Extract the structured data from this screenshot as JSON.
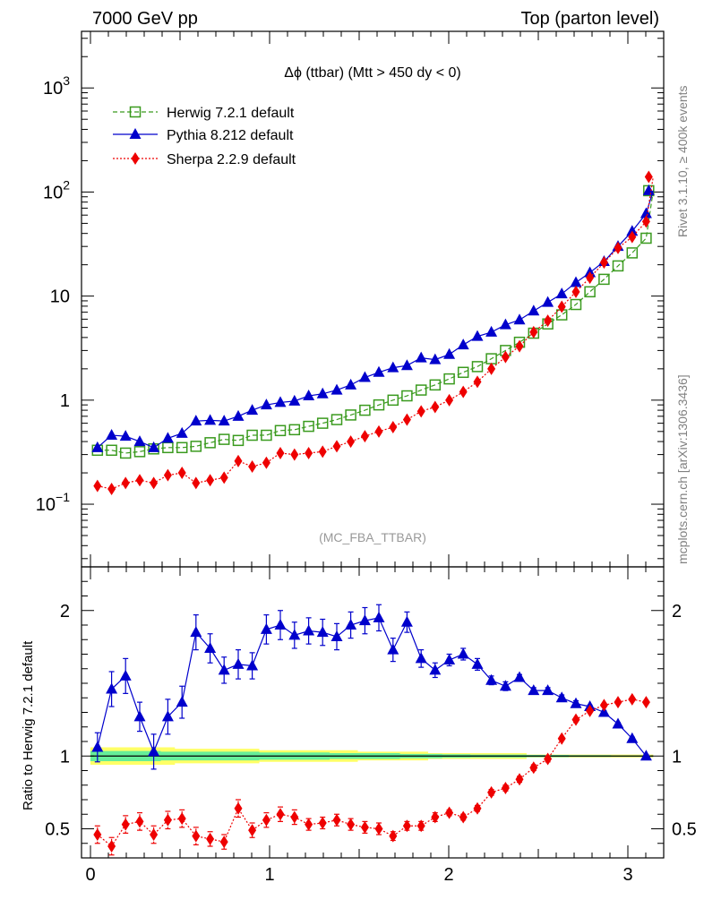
{
  "header": {
    "left": "7000 GeV pp",
    "right": "Top (parton level)"
  },
  "side_labels": {
    "rivet": "Rivet 3.1.10, ≥ 400k events",
    "mcplots": "mcplots.cern.ch [arXiv:1306.3436]"
  },
  "colors": {
    "herwig": "#3a9a1e",
    "pythia": "#0000cc",
    "sherpa": "#ee0000",
    "band_outer": "#ffff66",
    "band_inner": "#66ee99"
  },
  "chart_data": [
    {
      "type": "line",
      "title": "Δϕ (ttbar) (Mtt > 450 dy < 0)",
      "analysis_tag": "(MC_FBA_TTBAR)",
      "xlabel": "",
      "ylabel": "",
      "yscale": "log",
      "xlim": [
        -0.05,
        3.2
      ],
      "ylim": [
        0.025,
        3500
      ],
      "y_ticks": [
        {
          "value": 0.1,
          "base": "10",
          "exp": "−1"
        },
        {
          "value": 1,
          "base": "1",
          "exp": ""
        },
        {
          "value": 10,
          "base": "10",
          "exp": ""
        },
        {
          "value": 100,
          "base": "10",
          "exp": "2"
        },
        {
          "value": 1000,
          "base": "10",
          "exp": "3"
        }
      ],
      "legend_position": "top-left",
      "x": [
        0.039,
        0.118,
        0.196,
        0.275,
        0.353,
        0.432,
        0.511,
        0.589,
        0.668,
        0.746,
        0.825,
        0.903,
        0.982,
        1.06,
        1.139,
        1.218,
        1.296,
        1.375,
        1.453,
        1.532,
        1.61,
        1.689,
        1.767,
        1.846,
        1.924,
        2.003,
        2.081,
        2.16,
        2.238,
        2.317,
        2.395,
        2.474,
        2.553,
        2.631,
        2.71,
        2.788,
        2.867,
        2.945,
        3.024,
        3.102
      ],
      "series": [
        {
          "name": "Herwig 7.2.1 default",
          "key": "herwig",
          "marker": "open-square",
          "line": "dashed",
          "values": [
            0.33,
            0.33,
            0.31,
            0.32,
            0.34,
            0.35,
            0.35,
            0.36,
            0.39,
            0.42,
            0.41,
            0.46,
            0.46,
            0.51,
            0.52,
            0.56,
            0.6,
            0.65,
            0.72,
            0.8,
            0.9,
            1.0,
            1.1,
            1.25,
            1.4,
            1.6,
            1.85,
            2.1,
            2.5,
            3.0,
            3.6,
            4.4,
            5.4,
            6.6,
            8.3,
            11.0,
            14.5,
            19.5,
            26.0,
            36.0
          ]
        },
        {
          "name": "Pythia 8.212 default",
          "key": "pythia",
          "marker": "filled-triangle",
          "line": "solid",
          "values": [
            0.35,
            0.46,
            0.45,
            0.4,
            0.35,
            0.43,
            0.48,
            0.63,
            0.64,
            0.63,
            0.7,
            0.8,
            0.9,
            0.95,
            0.98,
            1.1,
            1.15,
            1.25,
            1.4,
            1.65,
            1.85,
            2.05,
            2.15,
            2.55,
            2.45,
            2.75,
            3.4,
            4.1,
            4.5,
            5.3,
            5.9,
            7.2,
            8.7,
            10.5,
            13.5,
            16.8,
            21.5,
            30.0,
            42.0,
            62.0
          ]
        },
        {
          "name": "Sherpa 2.2.9 default",
          "key": "sherpa",
          "marker": "filled-diamond",
          "line": "dotted",
          "values": [
            0.15,
            0.14,
            0.16,
            0.17,
            0.16,
            0.19,
            0.2,
            0.16,
            0.17,
            0.18,
            0.26,
            0.23,
            0.25,
            0.31,
            0.3,
            0.31,
            0.32,
            0.36,
            0.4,
            0.45,
            0.5,
            0.55,
            0.65,
            0.78,
            0.86,
            1.0,
            1.2,
            1.5,
            2.0,
            2.6,
            3.3,
            4.5,
            5.8,
            7.9,
            11.0,
            15.0,
            21.0,
            29.0,
            37.0,
            52.0
          ]
        }
      ],
      "last_bin_value": {
        "herwig": 103,
        "pythia": 103,
        "sherpa": 140
      }
    },
    {
      "type": "line",
      "title": "",
      "xlabel": "",
      "ylabel": "Ratio to Herwig 7.2.1 default",
      "xlim": [
        -0.05,
        3.2
      ],
      "ylim": [
        0.3,
        2.3
      ],
      "x_ticks": [
        "0",
        "1",
        "2",
        "3"
      ],
      "y_ticks": [
        "0.5",
        "1",
        "2"
      ],
      "x": [
        0.039,
        0.118,
        0.196,
        0.275,
        0.353,
        0.432,
        0.511,
        0.589,
        0.668,
        0.746,
        0.825,
        0.903,
        0.982,
        1.06,
        1.139,
        1.218,
        1.296,
        1.375,
        1.453,
        1.532,
        1.61,
        1.689,
        1.767,
        1.846,
        1.924,
        2.003,
        2.081,
        2.16,
        2.238,
        2.317,
        2.395,
        2.474,
        2.553,
        2.631,
        2.71,
        2.788,
        2.867,
        2.945,
        3.024,
        3.102
      ],
      "series": [
        {
          "name": "Pythia 8.212 default",
          "key": "pythia",
          "values": [
            1.06,
            1.46,
            1.55,
            1.27,
            1.03,
            1.27,
            1.37,
            1.85,
            1.74,
            1.59,
            1.63,
            1.62,
            1.87,
            1.9,
            1.83,
            1.86,
            1.85,
            1.82,
            1.9,
            1.93,
            1.95,
            1.73,
            1.92,
            1.67,
            1.59,
            1.66,
            1.7,
            1.63,
            1.52,
            1.48,
            1.54,
            1.45,
            1.45,
            1.4,
            1.36,
            1.34,
            1.3,
            1.22,
            1.12,
            1.0
          ],
          "errors": [
            0.1,
            0.12,
            0.12,
            0.1,
            0.12,
            0.12,
            0.11,
            0.12,
            0.1,
            0.09,
            0.1,
            0.09,
            0.1,
            0.1,
            0.09,
            0.09,
            0.09,
            0.09,
            0.09,
            0.09,
            0.09,
            0.08,
            0.07,
            0.06,
            0.05,
            0.04,
            0.04,
            0.04,
            0.03,
            0.03,
            0.02,
            0.02,
            0.02,
            0.02,
            0.02,
            0.01,
            0.01,
            0.01,
            0.01,
            0.01
          ]
        },
        {
          "name": "Sherpa 2.2.9 default",
          "key": "sherpa",
          "values": [
            0.46,
            0.38,
            0.53,
            0.55,
            0.46,
            0.56,
            0.57,
            0.45,
            0.43,
            0.41,
            0.64,
            0.49,
            0.56,
            0.6,
            0.58,
            0.53,
            0.54,
            0.56,
            0.53,
            0.51,
            0.5,
            0.45,
            0.52,
            0.52,
            0.58,
            0.61,
            0.58,
            0.64,
            0.75,
            0.78,
            0.84,
            0.92,
            0.98,
            1.12,
            1.25,
            1.31,
            1.35,
            1.37,
            1.39,
            1.37
          ],
          "errors": [
            0.06,
            0.06,
            0.06,
            0.06,
            0.06,
            0.06,
            0.06,
            0.06,
            0.05,
            0.05,
            0.06,
            0.05,
            0.05,
            0.05,
            0.05,
            0.04,
            0.04,
            0.04,
            0.04,
            0.04,
            0.04,
            0.03,
            0.03,
            0.03,
            0.03,
            0.02,
            0.02,
            0.02,
            0.02,
            0.02,
            0.02,
            0.02,
            0.02,
            0.01,
            0.01,
            0.01,
            0.01,
            0.01,
            0.01,
            0.01
          ]
        }
      ],
      "reference_line": 1,
      "uncertainty_band": {
        "outer": [
          0.06,
          0.06,
          0.06,
          0.06,
          0.06,
          0.06,
          0.05,
          0.05,
          0.05,
          0.05,
          0.05,
          0.05,
          0.04,
          0.04,
          0.04,
          0.04,
          0.04,
          0.04,
          0.04,
          0.03,
          0.03,
          0.03,
          0.03,
          0.03,
          0.02,
          0.02,
          0.02,
          0.02,
          0.02,
          0.02,
          0.02,
          0.01,
          0.01,
          0.01,
          0.01,
          0.01,
          0.01,
          0.01,
          0.01,
          0.01
        ],
        "inner": [
          0.035,
          0.035,
          0.035,
          0.035,
          0.035,
          0.03,
          0.03,
          0.03,
          0.03,
          0.03,
          0.03,
          0.03,
          0.025,
          0.025,
          0.025,
          0.025,
          0.025,
          0.02,
          0.02,
          0.02,
          0.02,
          0.02,
          0.015,
          0.015,
          0.015,
          0.012,
          0.012,
          0.01,
          0.01,
          0.01,
          0.01,
          0.008,
          0.008,
          0.008,
          0.006,
          0.006,
          0.006,
          0.005,
          0.005,
          0.005
        ]
      }
    }
  ]
}
